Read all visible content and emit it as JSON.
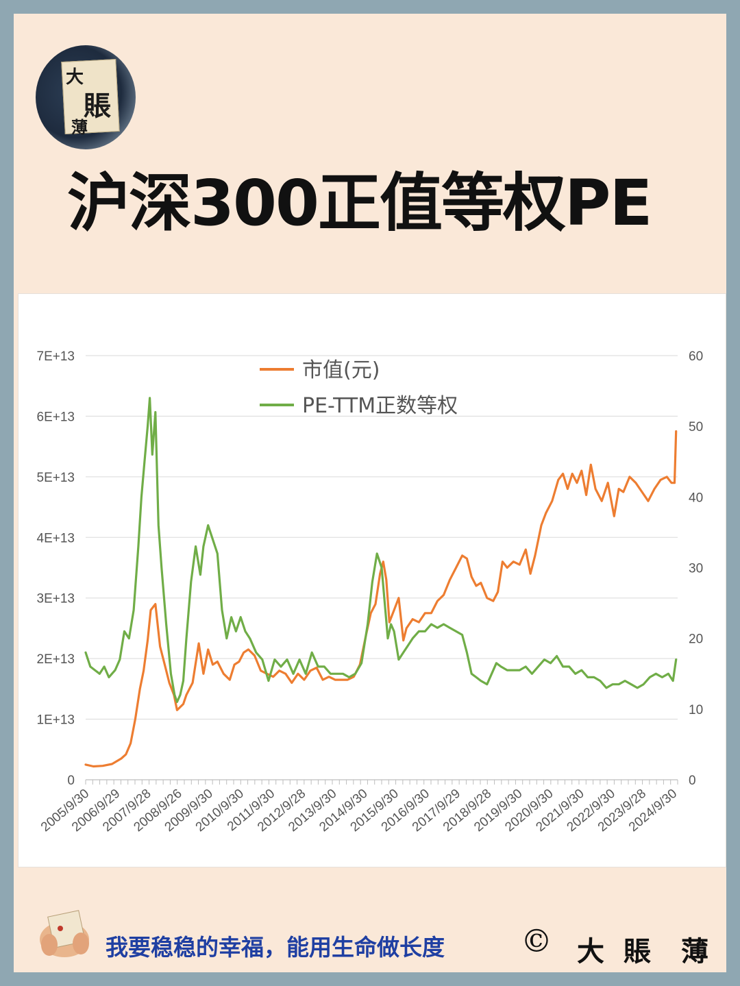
{
  "brand": {
    "logo_chars": [
      "大",
      "賬",
      "薄"
    ],
    "logo_seal": "落款"
  },
  "title": "沪深300正值等权PE",
  "chart_data": {
    "type": "line",
    "x_tick_labels": [
      "2005/9/30",
      "2006/9/29",
      "2007/9/28",
      "2008/9/26",
      "2009/9/30",
      "2010/9/30",
      "2011/9/30",
      "2012/9/28",
      "2013/9/30",
      "2014/9/30",
      "2015/9/30",
      "2016/9/30",
      "2017/9/29",
      "2018/9/28",
      "2019/9/30",
      "2020/9/30",
      "2021/9/30",
      "2022/9/30",
      "2023/9/28",
      "2024/9/30"
    ],
    "y_left_ticks": [
      "0",
      "1E+13",
      "2E+13",
      "3E+13",
      "4E+13",
      "5E+13",
      "6E+13",
      "7E+13"
    ],
    "y_left_lim": [
      0,
      70000000000000.0
    ],
    "y_right_ticks": [
      "0",
      "10",
      "20",
      "30",
      "40",
      "50",
      "60"
    ],
    "y_right_lim": [
      0,
      60
    ],
    "grid": true,
    "legend_position": "top-center",
    "series": [
      {
        "name": "市值(元)",
        "axis": "left",
        "color": "#ed7d31",
        "x": [
          2005.75,
          2006.0,
          2006.3,
          2006.6,
          2006.9,
          2007.05,
          2007.2,
          2007.35,
          2007.5,
          2007.62,
          2007.75,
          2007.85,
          2008.0,
          2008.15,
          2008.3,
          2008.45,
          2008.6,
          2008.7,
          2008.8,
          2008.9,
          2009.0,
          2009.2,
          2009.4,
          2009.55,
          2009.7,
          2009.85,
          2010.0,
          2010.2,
          2010.4,
          2010.55,
          2010.7,
          2010.85,
          2011.0,
          2011.2,
          2011.4,
          2011.6,
          2011.8,
          2012.0,
          2012.2,
          2012.4,
          2012.6,
          2012.8,
          2013.0,
          2013.2,
          2013.4,
          2013.6,
          2013.8,
          2014.0,
          2014.2,
          2014.4,
          2014.6,
          2014.8,
          2014.95,
          2015.1,
          2015.25,
          2015.35,
          2015.45,
          2015.55,
          2015.7,
          2015.85,
          2016.0,
          2016.1,
          2016.3,
          2016.5,
          2016.7,
          2016.9,
          2017.1,
          2017.3,
          2017.5,
          2017.7,
          2017.9,
          2018.05,
          2018.2,
          2018.35,
          2018.5,
          2018.7,
          2018.9,
          2019.05,
          2019.2,
          2019.35,
          2019.55,
          2019.75,
          2019.95,
          2020.1,
          2020.25,
          2020.45,
          2020.6,
          2020.8,
          2021.0,
          2021.15,
          2021.3,
          2021.45,
          2021.6,
          2021.75,
          2021.9,
          2022.05,
          2022.2,
          2022.4,
          2022.6,
          2022.8,
          2022.95,
          2023.1,
          2023.3,
          2023.5,
          2023.7,
          2023.9,
          2024.1,
          2024.3,
          2024.5,
          2024.65,
          2024.75,
          2024.8
        ],
        "values": [
          2500000000000.0,
          2200000000000.0,
          2300000000000.0,
          2600000000000.0,
          3500000000000.0,
          4200000000000.0,
          6000000000000.0,
          10000000000000.0,
          15000000000000.0,
          18000000000000.0,
          23000000000000.0,
          28000000000000.0,
          29000000000000.0,
          22000000000000.0,
          19000000000000.0,
          16000000000000.0,
          14000000000000.0,
          11500000000000.0,
          12000000000000.0,
          12500000000000.0,
          14000000000000.0,
          16000000000000.0,
          22500000000000.0,
          17500000000000.0,
          21500000000000.0,
          19000000000000.0,
          19500000000000.0,
          17500000000000.0,
          16500000000000.0,
          19000000000000.0,
          19500000000000.0,
          21000000000000.0,
          21500000000000.0,
          20500000000000.0,
          18000000000000.0,
          17500000000000.0,
          17000000000000.0,
          18000000000000.0,
          17500000000000.0,
          16000000000000.0,
          17500000000000.0,
          16500000000000.0,
          18000000000000.0,
          18500000000000.0,
          16500000000000.0,
          17000000000000.0,
          16500000000000.0,
          16500000000000.0,
          16500000000000.0,
          17000000000000.0,
          19000000000000.0,
          24000000000000.0,
          27500000000000.0,
          29000000000000.0,
          34000000000000.0,
          36000000000000.0,
          33000000000000.0,
          26000000000000.0,
          28000000000000.0,
          30000000000000.0,
          23000000000000.0,
          25000000000000.0,
          26500000000000.0,
          26000000000000.0,
          27500000000000.0,
          27500000000000.0,
          29500000000000.0,
          30500000000000.0,
          33000000000000.0,
          35000000000000.0,
          37000000000000.0,
          36500000000000.0,
          33500000000000.0,
          32000000000000.0,
          32500000000000.0,
          30000000000000.0,
          29500000000000.0,
          31000000000000.0,
          36000000000000.0,
          35000000000000.0,
          36000000000000.0,
          35500000000000.0,
          38000000000000.0,
          34000000000000.0,
          37000000000000.0,
          42000000000000.0,
          44000000000000.0,
          46000000000000.0,
          49500000000000.0,
          50500000000000.0,
          48000000000000.0,
          50500000000000.0,
          49000000000000.0,
          51000000000000.0,
          47000000000000.0,
          52000000000000.0,
          48000000000000.0,
          46000000000000.0,
          49000000000000.0,
          43500000000000.0,
          48000000000000.0,
          47500000000000.0,
          50000000000000.0,
          49000000000000.0,
          47500000000000.0,
          46000000000000.0,
          48000000000000.0,
          49500000000000.0,
          50000000000000.0,
          49000000000000.0,
          49000000000000.0,
          57500000000000.0
        ]
      },
      {
        "name": "PE-TTM正数等权",
        "axis": "right",
        "color": "#70ad47",
        "x": [
          2005.75,
          2005.9,
          2006.05,
          2006.2,
          2006.35,
          2006.5,
          2006.7,
          2006.85,
          2007.0,
          2007.15,
          2007.3,
          2007.45,
          2007.55,
          2007.65,
          2007.75,
          2007.82,
          2007.9,
          2008.0,
          2008.1,
          2008.2,
          2008.35,
          2008.5,
          2008.62,
          2008.7,
          2008.8,
          2008.9,
          2009.0,
          2009.15,
          2009.3,
          2009.45,
          2009.55,
          2009.7,
          2009.85,
          2010.0,
          2010.15,
          2010.3,
          2010.45,
          2010.6,
          2010.75,
          2010.9,
          2011.05,
          2011.25,
          2011.45,
          2011.65,
          2011.85,
          2012.05,
          2012.25,
          2012.45,
          2012.65,
          2012.85,
          2013.05,
          2013.25,
          2013.45,
          2013.65,
          2013.85,
          2014.05,
          2014.25,
          2014.45,
          2014.65,
          2014.85,
          2015.0,
          2015.15,
          2015.3,
          2015.42,
          2015.5,
          2015.6,
          2015.7,
          2015.85,
          2016.0,
          2016.15,
          2016.3,
          2016.5,
          2016.7,
          2016.9,
          2017.1,
          2017.3,
          2017.5,
          2017.7,
          2017.9,
          2018.05,
          2018.2,
          2018.35,
          2018.5,
          2018.7,
          2018.85,
          2019.0,
          2019.15,
          2019.35,
          2019.55,
          2019.75,
          2019.95,
          2020.15,
          2020.35,
          2020.55,
          2020.75,
          2020.95,
          2021.15,
          2021.35,
          2021.55,
          2021.75,
          2021.95,
          2022.15,
          2022.35,
          2022.55,
          2022.75,
          2022.95,
          2023.15,
          2023.35,
          2023.55,
          2023.75,
          2023.95,
          2024.15,
          2024.35,
          2024.55,
          2024.7,
          2024.8
        ],
        "values": [
          18,
          16,
          15.5,
          15,
          16,
          14.5,
          15.5,
          17,
          21,
          20,
          24,
          33,
          40,
          45,
          50,
          54,
          46,
          52,
          36,
          30,
          22,
          15,
          12,
          11,
          12,
          14,
          20,
          28,
          33,
          29,
          33,
          36,
          34,
          32,
          24,
          20,
          23,
          21,
          23,
          21,
          20,
          18,
          17,
          14,
          17,
          16,
          17,
          15,
          17,
          15,
          18,
          16,
          16,
          15,
          15,
          15,
          14.5,
          15,
          16.5,
          22,
          28,
          32,
          30,
          24,
          20,
          22,
          21,
          17,
          18,
          19,
          20,
          21,
          21,
          22,
          21.5,
          22,
          21.5,
          21,
          20.5,
          18,
          15,
          14.5,
          14,
          13.5,
          15,
          16.5,
          16,
          15.5,
          15.5,
          15.5,
          16,
          15,
          16,
          17,
          16.5,
          17.5,
          16,
          16,
          15,
          15.5,
          14.5,
          14.5,
          14,
          13,
          13.5,
          13.5,
          14,
          13.5,
          13,
          13.5,
          14.5,
          15,
          14.5,
          15,
          14,
          17
        ]
      }
    ]
  },
  "footer": {
    "slogan": "我要稳稳的幸福，能用生命做长度",
    "copyright": "©",
    "signature": [
      "大",
      "賬",
      "薄"
    ]
  }
}
